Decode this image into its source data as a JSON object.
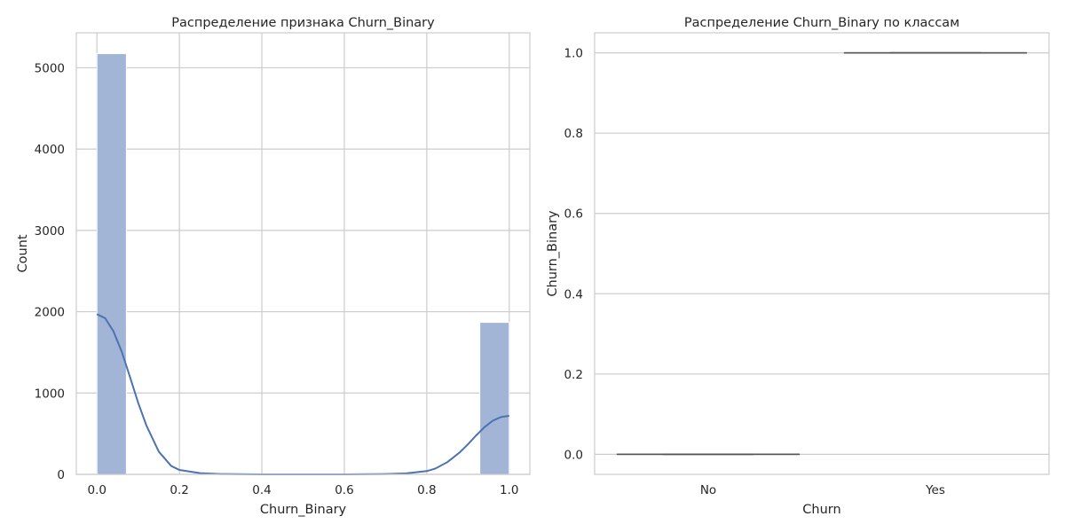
{
  "chart_data": [
    {
      "type": "histogram",
      "title": "Распределение признака Churn_Binary",
      "xlabel": "Churn_Binary",
      "ylabel": "Count",
      "xlim": [
        -0.05,
        1.05
      ],
      "ylim": [
        0,
        5430
      ],
      "xticks": [
        0.0,
        0.2,
        0.4,
        0.6,
        0.8,
        1.0
      ],
      "xtick_labels": [
        "0.0",
        "0.2",
        "0.4",
        "0.6",
        "0.8",
        "1.0"
      ],
      "yticks": [
        0,
        1000,
        2000,
        3000,
        4000,
        5000
      ],
      "ytick_labels": [
        "0",
        "1000",
        "2000",
        "3000",
        "4000",
        "5000"
      ],
      "grid": true,
      "bar_color": "#a3b5d6",
      "kde_color": "#4c72b0",
      "bins": [
        {
          "x0": 0.0,
          "x1": 0.0714,
          "count": 5174
        },
        {
          "x0": 0.9286,
          "x1": 1.0,
          "count": 1869
        }
      ],
      "kde": {
        "x": [
          0.0,
          0.02,
          0.04,
          0.06,
          0.08,
          0.1,
          0.12,
          0.15,
          0.18,
          0.2,
          0.25,
          0.3,
          0.4,
          0.5,
          0.6,
          0.7,
          0.75,
          0.8,
          0.82,
          0.85,
          0.88,
          0.9,
          0.92,
          0.94,
          0.96,
          0.98,
          1.0
        ],
        "y": [
          1970,
          1920,
          1760,
          1510,
          1200,
          880,
          600,
          280,
          105,
          55,
          15,
          4,
          0,
          0,
          0,
          4,
          12,
          40,
          70,
          150,
          270,
          370,
          480,
          580,
          660,
          705,
          720
        ]
      }
    },
    {
      "type": "box",
      "title": "Распределение Churn_Binary по классам",
      "xlabel": "Churn",
      "ylabel": "Churn_Binary",
      "categories": [
        "No",
        "Yes"
      ],
      "ylim": [
        -0.05,
        1.05
      ],
      "yticks": [
        0.0,
        0.2,
        0.4,
        0.6,
        0.8,
        1.0
      ],
      "ytick_labels": [
        "0.0",
        "0.2",
        "0.4",
        "0.6",
        "0.8",
        "1.0"
      ],
      "grid": true,
      "line_color": "#555555",
      "boxes": [
        {
          "category": "No",
          "min": 0.0,
          "q1": 0.0,
          "median": 0.0,
          "q3": 0.0,
          "max": 0.0
        },
        {
          "category": "Yes",
          "min": 1.0,
          "q1": 1.0,
          "median": 1.0,
          "q3": 1.0,
          "max": 1.0
        }
      ]
    }
  ]
}
